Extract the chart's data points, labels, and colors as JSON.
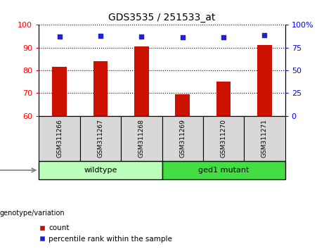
{
  "title": "GDS3535 / 251533_at",
  "samples": [
    "GSM311266",
    "GSM311267",
    "GSM311268",
    "GSM311269",
    "GSM311270",
    "GSM311271"
  ],
  "count_values": [
    81.5,
    84.0,
    90.5,
    69.5,
    75.0,
    91.0
  ],
  "percentile_values": [
    87.0,
    88.0,
    87.5,
    86.0,
    86.5,
    88.5
  ],
  "ylim_left": [
    60,
    100
  ],
  "ylim_right": [
    0,
    100
  ],
  "yticks_left": [
    60,
    70,
    80,
    90,
    100
  ],
  "yticks_right": [
    0,
    25,
    50,
    75,
    100
  ],
  "ytick_labels_right": [
    "0",
    "25",
    "50",
    "75",
    "100%"
  ],
  "bar_color": "#cc1100",
  "dot_color": "#2222cc",
  "group1_label": "wildtype",
  "group2_label": "ged1 mutant",
  "group1_color": "#bbffbb",
  "group2_color": "#44dd44",
  "genotype_label": "genotype/variation",
  "legend_count": "count",
  "legend_percentile": "percentile rank within the sample",
  "plot_bg": "#d8d8d8",
  "bar_width": 0.35
}
